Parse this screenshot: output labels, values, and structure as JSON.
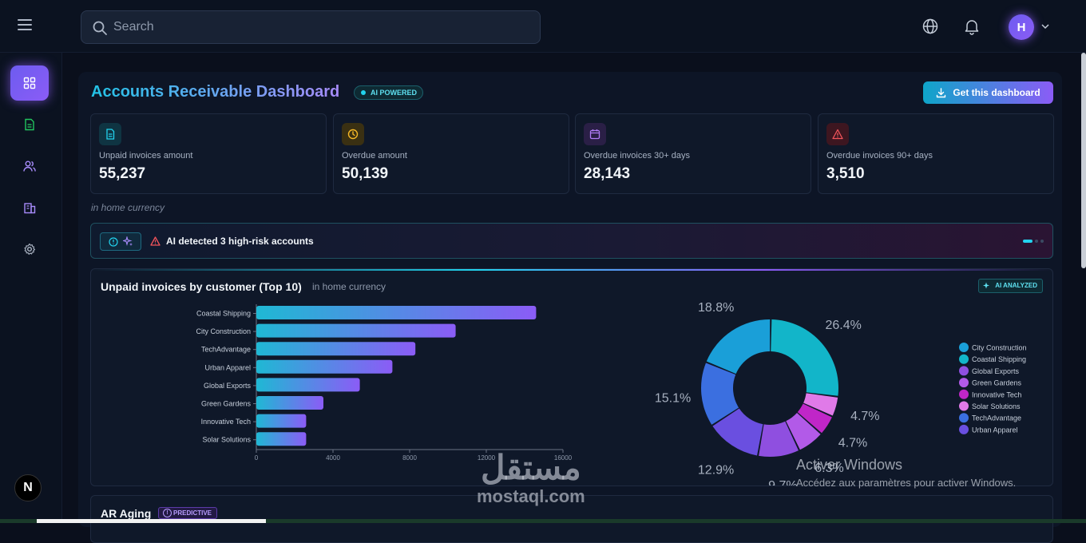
{
  "search": {
    "placeholder": "Search"
  },
  "header": {
    "avatar_initial": "H"
  },
  "sidebar": {
    "items": [
      "dashboard",
      "documents",
      "users",
      "buildings",
      "settings"
    ],
    "footer_logo": "N"
  },
  "page": {
    "title": "Accounts Receivable Dashboard",
    "ai_badge": "AI POWERED",
    "get_dashboard_label": "Get this dashboard",
    "currency_note": "in home currency"
  },
  "kpis": [
    {
      "label": "Unpaid invoices amount",
      "value": "55,237",
      "icon": "document-icon",
      "color": "#22d3ee"
    },
    {
      "label": "Overdue amount",
      "value": "50,139",
      "icon": "clock-icon",
      "color": "#f5b727"
    },
    {
      "label": "Overdue invoices 30+ days",
      "value": "28,143",
      "icon": "calendar-icon",
      "color": "#b07cf7"
    },
    {
      "label": "Overdue invoices 90+ days",
      "value": "3,510",
      "icon": "warning-icon",
      "color": "#f2545b"
    }
  ],
  "alert": {
    "text": "AI detected 3 high-risk accounts"
  },
  "chart_section": {
    "title": "Unpaid invoices by customer (Top 10)",
    "subtitle": "in home currency",
    "badge": "AI ANALYZED"
  },
  "chart_data": [
    {
      "type": "bar",
      "orientation": "horizontal",
      "categories": [
        "Coastal Shipping",
        "City Construction",
        "TechAdvantage",
        "Urban Apparel",
        "Global Exports",
        "Green Gardens",
        "Innovative Tech",
        "Solar Solutions"
      ],
      "values": [
        14600,
        10400,
        8300,
        7100,
        5400,
        3500,
        2600,
        2600
      ],
      "xticks": [
        "0",
        "4000",
        "8000",
        "12000",
        "16000"
      ],
      "xlim": [
        0,
        16000
      ],
      "colors": {
        "start": "#1fb8d4",
        "end": "#8b5cf6"
      }
    },
    {
      "type": "pie",
      "donut": true,
      "labels": [
        "City Construction",
        "Coastal Shipping",
        "Global Exports",
        "Green Gardens",
        "Innovative Tech",
        "Solar Solutions",
        "TechAdvantage",
        "Urban Apparel"
      ],
      "slice_order": [
        "Coastal Shipping",
        "Solar Solutions",
        "Innovative Tech",
        "Green Gardens",
        "Global Exports",
        "Urban Apparel",
        "TechAdvantage",
        "City Construction"
      ],
      "values": [
        26.4,
        4.7,
        4.7,
        6.3,
        9.7,
        12.9,
        15.1,
        18.8
      ],
      "value_labels": [
        "26.4%",
        "4.7%",
        "4.7%",
        "6.3%",
        "9.7%",
        "12.9%",
        "15.1%",
        "18.8%"
      ],
      "slice_colors": [
        "#12b5c9",
        "#e07ae8",
        "#c026c8",
        "#b25ae8",
        "#8f4fe0",
        "#6a4fe0",
        "#3b6fe0",
        "#1a9fd8"
      ],
      "legend_colors": [
        "#1a9fd8",
        "#12b5c9",
        "#8f4fe0",
        "#b25ae8",
        "#c026c8",
        "#e07ae8",
        "#3b6fe0",
        "#6a4fe0"
      ],
      "legend_position": "right"
    }
  ],
  "aging": {
    "title": "AR Aging",
    "badge": "PREDICTIVE"
  },
  "watermark": {
    "line1": "Activer Windows",
    "line2": "Accédez aux paramètres pour activer Windows."
  },
  "overlay": {
    "arabic": "مستقل",
    "latin": "mostaql.com"
  }
}
